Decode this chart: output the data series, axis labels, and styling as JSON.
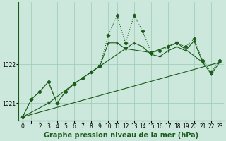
{
  "title": "Graphe pression niveau de la mer (hPa)",
  "background_color": "#cce8dc",
  "line_color": "#1a5c1a",
  "grid_color": "#99ccb3",
  "xlim": [
    -0.5,
    23.5
  ],
  "ylim": [
    1020.55,
    1023.6
  ],
  "yticks": [
    1021,
    1022
  ],
  "xticks": [
    0,
    1,
    2,
    3,
    4,
    5,
    6,
    7,
    8,
    9,
    10,
    11,
    12,
    13,
    14,
    15,
    16,
    17,
    18,
    19,
    20,
    21,
    22,
    23
  ],
  "series": [
    {
      "x": [
        0,
        1,
        2,
        3,
        4,
        5,
        6,
        7,
        8,
        9,
        10,
        11,
        12,
        13,
        14,
        15,
        16,
        17,
        18,
        19,
        20,
        21,
        22,
        23
      ],
      "y": [
        1020.65,
        1021.1,
        1021.3,
        1021.55,
        1021.0,
        1021.3,
        1021.5,
        1021.65,
        1021.8,
        1021.95,
        1022.75,
        1023.25,
        1022.55,
        1023.25,
        1022.85,
        1022.3,
        1022.35,
        1022.45,
        1022.55,
        1022.45,
        1022.65,
        1022.1,
        1021.8,
        1022.1
      ],
      "marker": "D",
      "markersize": 2.5,
      "linewidth": 0.8,
      "linestyle": ":"
    },
    {
      "x": [
        0,
        1,
        2,
        3,
        4,
        5,
        6,
        7,
        8,
        9,
        10,
        11,
        12,
        13,
        14,
        15,
        16,
        17,
        18,
        19,
        20,
        21,
        22,
        23
      ],
      "y": [
        1020.65,
        1021.1,
        1021.3,
        1021.55,
        1021.0,
        1021.3,
        1021.5,
        1021.65,
        1021.8,
        1021.95,
        1022.55,
        1022.55,
        1022.4,
        1022.55,
        1022.45,
        1022.25,
        1022.2,
        1022.35,
        1022.45,
        1022.35,
        1022.6,
        1022.05,
        1021.75,
        1022.05
      ],
      "marker": "+",
      "markersize": 3.5,
      "linewidth": 0.8,
      "linestyle": "-"
    },
    {
      "x": [
        0,
        3,
        6,
        9,
        12,
        15,
        18,
        21
      ],
      "y": [
        1020.65,
        1021.0,
        1021.5,
        1021.95,
        1022.4,
        1022.3,
        1022.55,
        1022.05
      ],
      "marker": "v",
      "markersize": 3,
      "linewidth": 0.8,
      "linestyle": "-"
    },
    {
      "x": [
        0,
        23
      ],
      "y": [
        1020.65,
        1022.05
      ],
      "marker": null,
      "markersize": 0,
      "linewidth": 0.8,
      "linestyle": "-"
    }
  ],
  "tick_fontsize": 5.5,
  "label_fontsize": 7.0
}
